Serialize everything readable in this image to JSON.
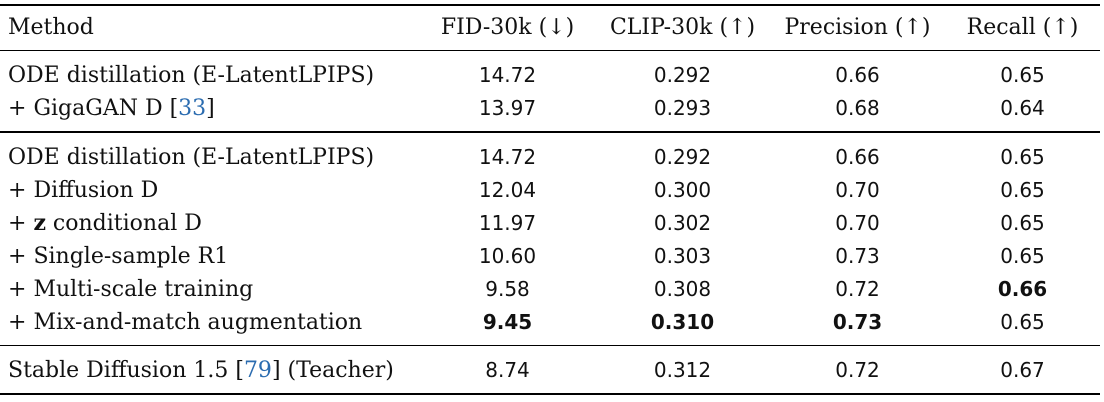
{
  "header": {
    "method": "Method",
    "fid": "FID-30k (↓)",
    "clip": "CLIP-30k (↑)",
    "precision": "Precision (↑)",
    "recall": "Recall (↑)"
  },
  "groups": [
    {
      "rows": [
        {
          "prefix": "",
          "label": "ODE distillation (E-LatentLPIPS)",
          "ref": "",
          "suffix": "",
          "fid": "14.72",
          "clip": "0.292",
          "precision": "0.66",
          "recall": "0.65"
        },
        {
          "prefix": "+ ",
          "label": "GigaGAN D [",
          "ref": "33",
          "suffix": "]",
          "fid": "13.97",
          "clip": "0.293",
          "precision": "0.68",
          "recall": "0.64"
        }
      ]
    },
    {
      "rows": [
        {
          "prefix": "",
          "label": "ODE distillation (E-LatentLPIPS)",
          "fid": "14.72",
          "clip": "0.292",
          "precision": "0.66",
          "recall": "0.65"
        },
        {
          "prefix": "+ ",
          "label": "Diffusion D",
          "fid": "12.04",
          "clip": "0.300",
          "precision": "0.70",
          "recall": "0.65"
        },
        {
          "prefix": "+ ",
          "bold_prefix": "z",
          "label": " conditional D",
          "fid": "11.97",
          "clip": "0.302",
          "precision": "0.70",
          "recall": "0.65"
        },
        {
          "prefix": "+ ",
          "label": "Single-sample R1",
          "fid": "10.60",
          "clip": "0.303",
          "precision": "0.73",
          "recall": "0.65"
        },
        {
          "prefix": "+ ",
          "label": "Multi-scale training",
          "fid": "9.58",
          "clip": "0.308",
          "precision": "0.72",
          "recall": "0.66"
        },
        {
          "prefix": "+ ",
          "label": "Mix-and-match augmentation",
          "fid": "9.45",
          "clip": "0.310",
          "precision": "0.73",
          "recall": "0.65"
        }
      ]
    },
    {
      "rows": [
        {
          "prefix": "",
          "label": "Stable Diffusion 1.5 [",
          "ref": "79",
          "suffix": "] (Teacher)",
          "fid": "8.74",
          "clip": "0.312",
          "precision": "0.72",
          "recall": "0.67"
        }
      ]
    }
  ],
  "colors": {
    "text": "#111111",
    "reference_link": "#2b6cb0",
    "rule": "#000000"
  }
}
